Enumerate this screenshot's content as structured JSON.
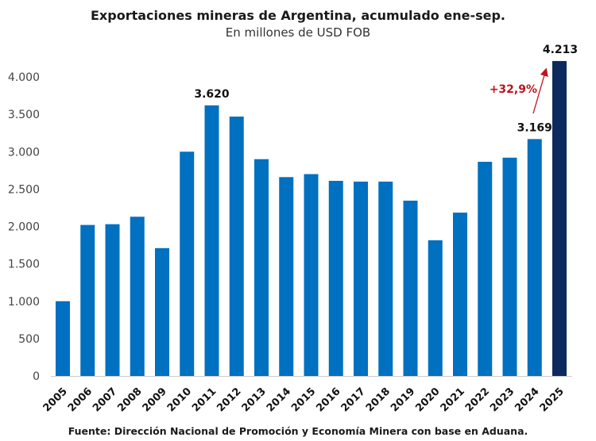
{
  "chart_data": {
    "type": "bar",
    "title": "Exportaciones mineras de Argentina, acumulado ene-sep.",
    "subtitle": "En millones de USD FOB",
    "source": "Fuente: Dirección Nacional de Promoción y Economía Minera con base en Aduana.",
    "xlabel": "",
    "ylabel": "",
    "ylim": [
      0,
      4213
    ],
    "yticks": [
      0,
      500,
      1000,
      1500,
      2000,
      2500,
      3000,
      3500,
      4000
    ],
    "ytick_labels": [
      "0",
      "500",
      "1.000",
      "1.500",
      "2.000",
      "2.500",
      "3.000",
      "3.500",
      "4.000"
    ],
    "grid": false,
    "categories": [
      "2005",
      "2006",
      "2007",
      "2008",
      "2009",
      "2010",
      "2011",
      "2012",
      "2013",
      "2014",
      "2015",
      "2016",
      "2017",
      "2018",
      "2019",
      "2020",
      "2021",
      "2022",
      "2023",
      "2024",
      "2025"
    ],
    "values": [
      1000,
      2020,
      2030,
      2130,
      1710,
      3000,
      3620,
      3470,
      2900,
      2660,
      2700,
      2610,
      2600,
      2600,
      2345,
      1815,
      2185,
      2865,
      2920,
      3169,
      4213
    ],
    "data_labels": {
      "2011": "3.620",
      "2024": "3.169",
      "2025": "4.213"
    },
    "annotation": "+32,9%",
    "colors": {
      "bar": "#0070c0",
      "highlight": "#0c2a5e",
      "annotation": "#c0141c"
    }
  }
}
